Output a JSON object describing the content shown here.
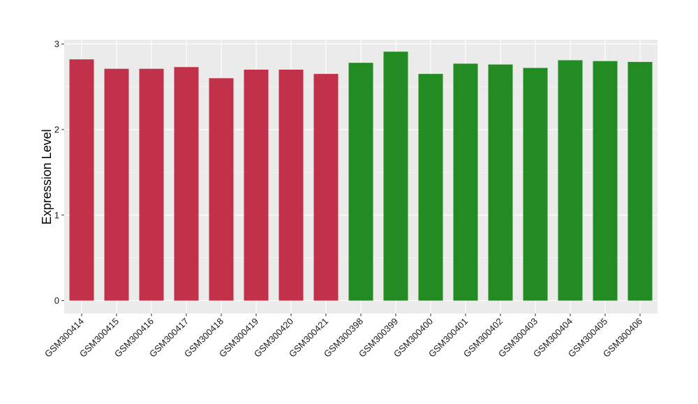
{
  "chart_data": {
    "type": "bar",
    "title": "",
    "xlabel": "",
    "ylabel": "Expression Level",
    "ylim": [
      -0.15,
      3.05
    ],
    "y_ticks": [
      0,
      1,
      2,
      3
    ],
    "y_tick_labels": [
      "0",
      "1",
      "2",
      "3"
    ],
    "grid": true,
    "legend": "none",
    "categories": [
      "GSM300414",
      "GSM300415",
      "GSM300416",
      "GSM300417",
      "GSM300418",
      "GSM300419",
      "GSM300420",
      "GSM300421",
      "GSM300398",
      "GSM300399",
      "GSM300400",
      "GSM300401",
      "GSM300402",
      "GSM300403",
      "GSM300404",
      "GSM300405",
      "GSM300406"
    ],
    "values": [
      2.82,
      2.71,
      2.71,
      2.73,
      2.6,
      2.7,
      2.7,
      2.65,
      2.78,
      2.91,
      2.65,
      2.77,
      2.76,
      2.72,
      2.81,
      2.8,
      2.79
    ],
    "bar_colors": [
      "#c1314a",
      "#c1314a",
      "#c1314a",
      "#c1314a",
      "#c1314a",
      "#c1314a",
      "#c1314a",
      "#c1314a",
      "#228b22",
      "#228b22",
      "#228b22",
      "#228b22",
      "#228b22",
      "#228b22",
      "#228b22",
      "#228b22",
      "#228b22"
    ]
  },
  "colors": {
    "panel_background": "#ebebeb",
    "grid_major": "#ffffff",
    "grid_minor": "#f5f5f5",
    "tick": "#333333"
  }
}
